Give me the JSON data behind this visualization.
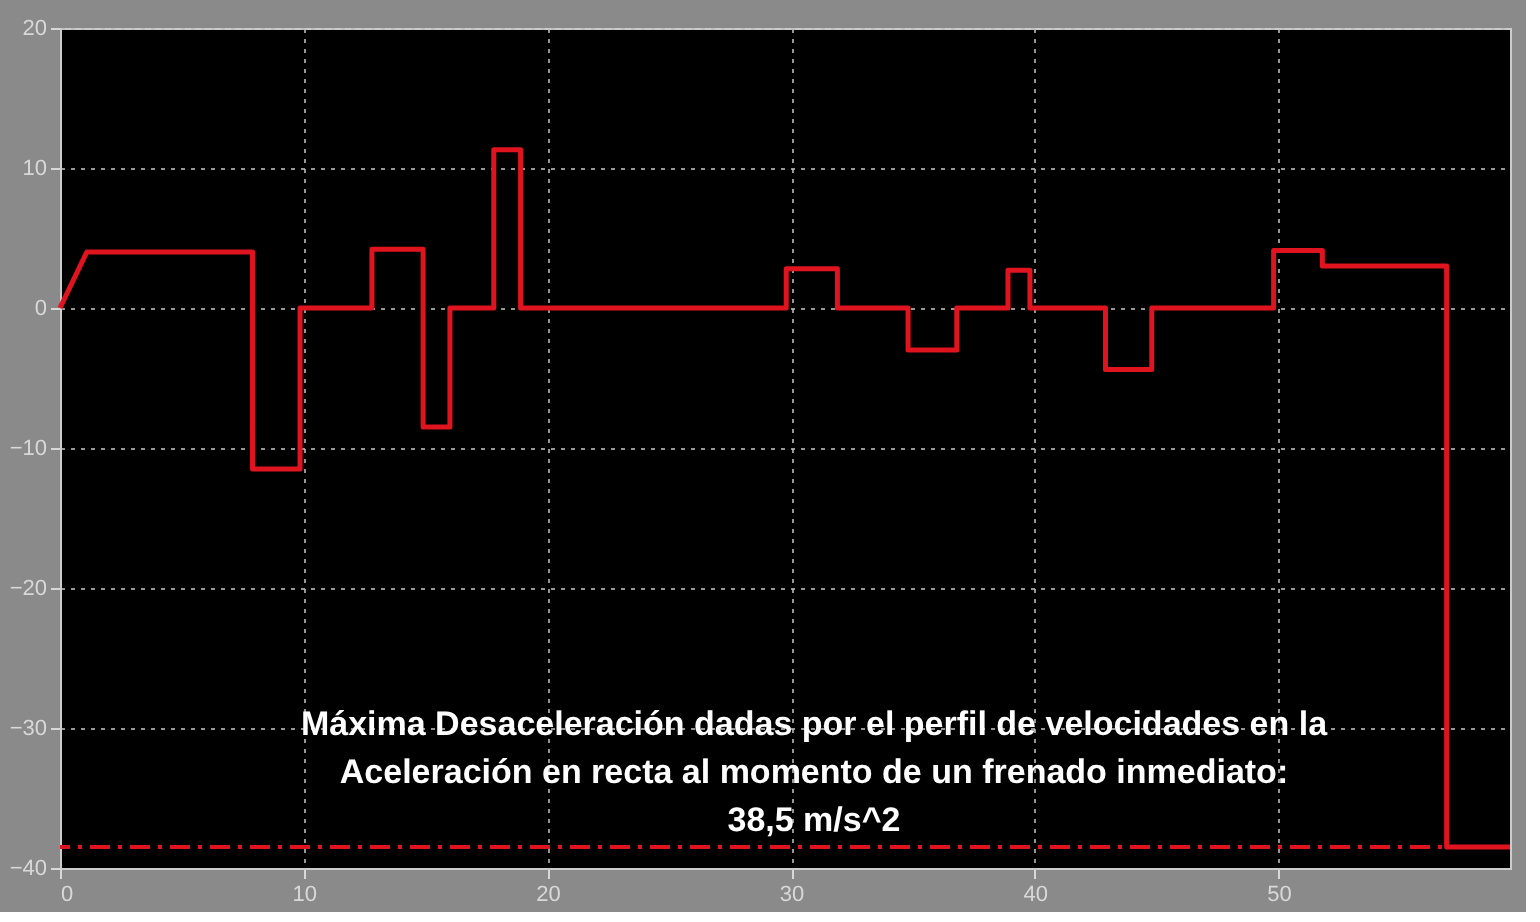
{
  "chart_data": {
    "type": "line",
    "x": [
      0,
      1.1,
      7.9,
      7.9,
      9.85,
      9.85,
      12.8,
      12.8,
      14.9,
      14.9,
      16.0,
      16.0,
      17.8,
      17.8,
      18.9,
      18.9,
      29.8,
      29.8,
      31.9,
      31.9,
      34.8,
      34.8,
      36.8,
      36.8,
      38.9,
      38.9,
      39.8,
      39.8,
      42.9,
      42.9,
      44.8,
      44.8,
      49.8,
      49.8,
      51.8,
      51.8,
      56.9,
      56.9,
      59.5
    ],
    "series": [
      {
        "color": "#e0141e",
        "values": [
          0,
          4,
          4,
          -11.5,
          -11.5,
          0,
          0,
          4.2,
          4.2,
          -8.5,
          -8.5,
          0,
          0,
          11.3,
          11.3,
          0,
          0,
          2.8,
          2.8,
          0,
          0,
          -3,
          -3,
          0,
          0,
          2.7,
          2.7,
          0,
          0,
          -4.4,
          -4.4,
          0,
          0,
          4.1,
          4.1,
          3,
          3,
          -38.5,
          -38.5
        ]
      }
    ],
    "xlim": [
      0,
      59.5
    ],
    "xticks": [
      0,
      10,
      20,
      30,
      40,
      50
    ],
    "ylim": [
      -40,
      20
    ],
    "yticks": [
      -40,
      -30,
      -20,
      -10,
      0,
      10,
      20
    ],
    "grid": true,
    "marker": "none",
    "line_style": "solid",
    "ref_lines": [
      {
        "axis": "y",
        "value": -38.5,
        "color": "#e0141e",
        "line_style": "dashed"
      }
    ],
    "annotations": [
      "Máxima Desaceleración dadas por el perfil de velocidades en la\nAceleración en recta al momento de un frenado inmediato:\n38,5 m/s^2"
    ]
  }
}
